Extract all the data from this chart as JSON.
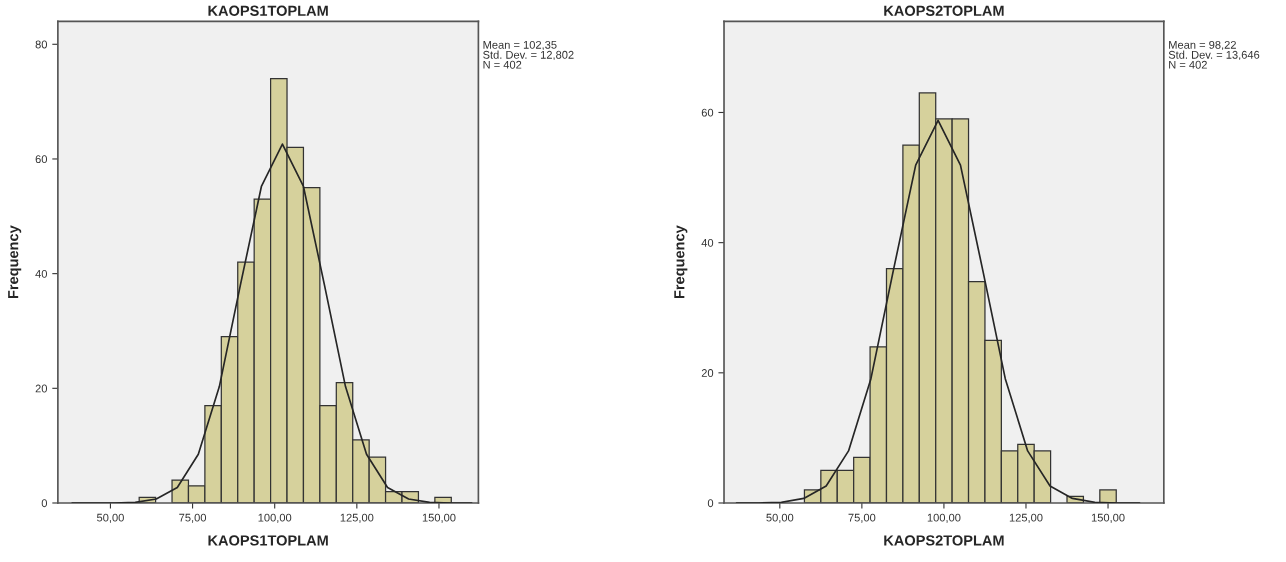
{
  "chart_data": [
    {
      "type": "histogram",
      "title": "KAOPS1TOPLAM",
      "xlabel": "KAOPS1TOPLAM",
      "ylabel": "Frequency",
      "bins": [
        58.75,
        63.75,
        68.75,
        73.75,
        78.75,
        83.75,
        88.75,
        93.75,
        98.75,
        103.75,
        108.75,
        113.75,
        118.75,
        123.75,
        128.75,
        133.75,
        138.75,
        143.75,
        148.75,
        153.75
      ],
      "values": [
        1,
        0,
        4,
        3,
        17,
        29,
        42,
        53,
        74,
        62,
        55,
        17,
        21,
        11,
        8,
        2,
        2,
        0,
        1
      ],
      "color": "#d6d19c",
      "series": [
        {
          "type": "line",
          "color": "#262626",
          "x": [
            38.34,
            44.74,
            51.14,
            57.54,
            63.95,
            70.35,
            76.75,
            83.15,
            89.55,
            95.95,
            102.35,
            108.75,
            115.15,
            121.55,
            127.95,
            134.35,
            140.76,
            147.16,
            153.56,
            159.96
          ],
          "values": [
            0,
            0,
            0,
            0.1,
            0.7,
            2.7,
            8.5,
            20.3,
            38.0,
            55.2,
            62.6,
            55.2,
            38.0,
            20.3,
            8.5,
            2.7,
            0.7,
            0.1,
            0,
            0
          ]
        }
      ],
      "xlim": [
        34,
        162
      ],
      "ylim": [
        0,
        84
      ],
      "xticks": [
        {
          "value": 50,
          "label": "50,00"
        },
        {
          "value": 75,
          "label": "75,00"
        },
        {
          "value": 100,
          "label": "100,00"
        },
        {
          "value": 125,
          "label": "125,00"
        },
        {
          "value": 150,
          "label": "150,00"
        }
      ],
      "yticks": [
        0,
        20,
        40,
        60,
        80
      ],
      "annotations": [
        "Mean = 102,35\nStd. Dev. = 12,802\nN = 402"
      ]
    },
    {
      "type": "histogram",
      "title": "KAOPS2TOPLAM",
      "xlabel": "KAOPS2TOPLAM",
      "ylabel": "Frequency",
      "bins": [
        57.5,
        62.5,
        67.5,
        72.5,
        77.5,
        82.5,
        87.5,
        92.5,
        97.5,
        102.5,
        107.5,
        112.5,
        117.5,
        122.5,
        127.5,
        132.5,
        137.5,
        142.5,
        147.5,
        152.5
      ],
      "values": [
        2,
        5,
        5,
        7,
        24,
        36,
        55,
        63,
        59,
        59,
        34,
        25,
        8,
        9,
        8,
        0,
        1,
        0,
        2
      ],
      "color": "#d6d19c",
      "series": [
        {
          "type": "line",
          "color": "#262626",
          "x": [
            36.82,
            43.65,
            50.47,
            57.3,
            64.12,
            70.94,
            77.76,
            84.58,
            91.4,
            98.22,
            105.04,
            111.86,
            118.69,
            125.51,
            132.33,
            139.15,
            145.98,
            152.8,
            159.62
          ],
          "values": [
            0,
            0,
            0.1,
            0.7,
            2.6,
            8.0,
            19.1,
            35.7,
            51.9,
            58.8,
            51.9,
            35.7,
            19.1,
            8.0,
            2.6,
            0.7,
            0.1,
            0,
            0
          ]
        }
      ],
      "xlim": [
        33,
        167
      ],
      "ylim": [
        0,
        74
      ],
      "xticks": [
        {
          "value": 50,
          "label": "50,00"
        },
        {
          "value": 75,
          "label": "75,00"
        },
        {
          "value": 100,
          "label": "100,00"
        },
        {
          "value": 125,
          "label": "125,00"
        },
        {
          "value": 150,
          "label": "150,00"
        }
      ],
      "yticks": [
        0,
        20,
        40,
        60
      ],
      "annotations": [
        "Mean = 98,22\nStd. Dev. = 13,646\nN = 402"
      ]
    }
  ]
}
